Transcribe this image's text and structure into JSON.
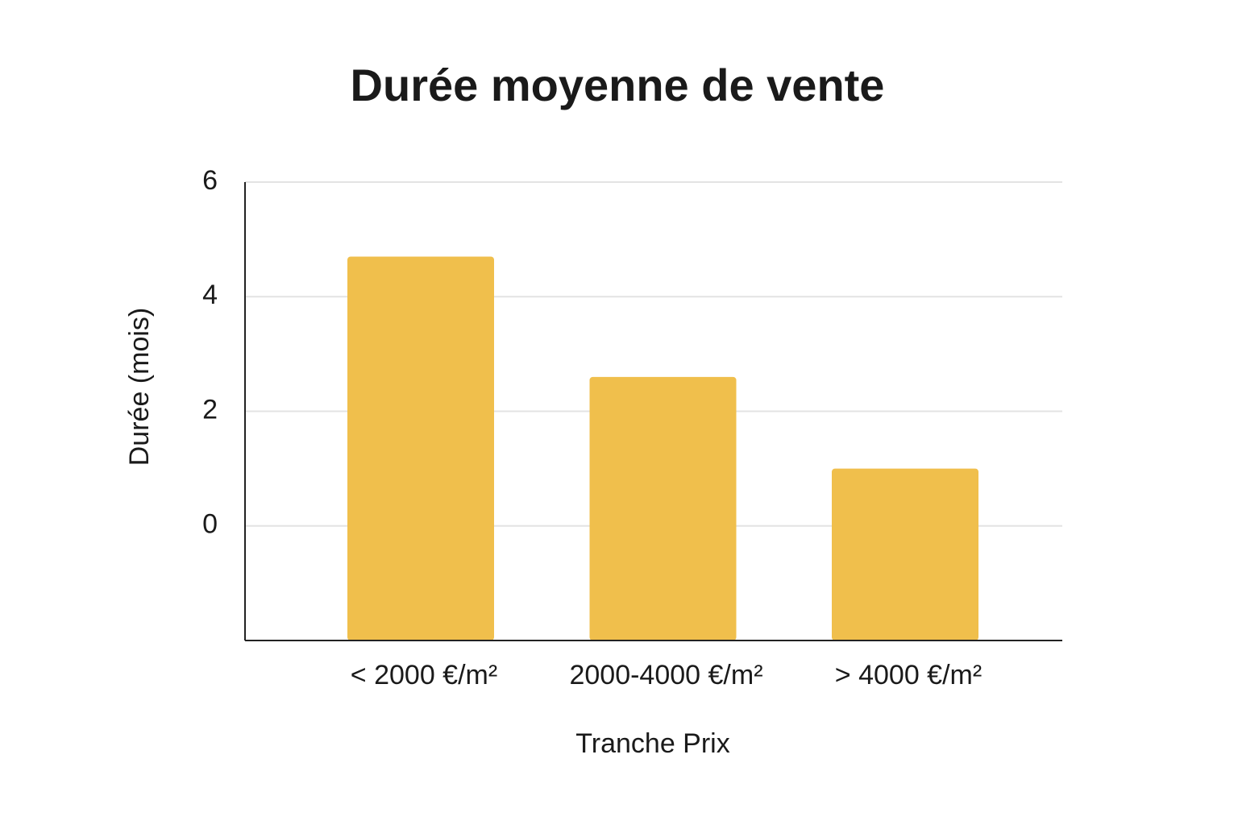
{
  "chart_data": {
    "type": "bar",
    "title": "Durée moyenne de vente",
    "x_label": "Tranche Prix",
    "y_label": "Durée (mois)",
    "categories": [
      "< 2000 €/m²",
      "2000-4000 €/m²",
      "> 4000 €/m²"
    ],
    "values": [
      4.7,
      2.6,
      1.0
    ],
    "color": "#f0bf4c",
    "ylim": [
      -2,
      6
    ],
    "yticks": [
      0,
      2,
      4,
      6
    ],
    "grid": true
  }
}
